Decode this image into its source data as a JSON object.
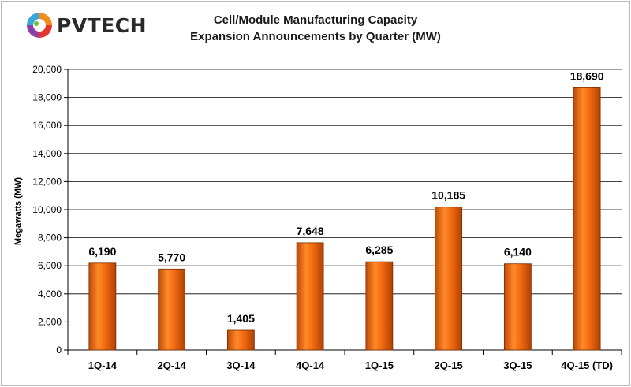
{
  "logo": {
    "text": "PVTECH",
    "icon": "pvtech-logo-icon"
  },
  "chart_data": {
    "type": "bar",
    "title": "Cell/Module Manufacturing Capacity",
    "subtitle": "Expansion Announcements by Quarter (MW)",
    "xlabel": "",
    "ylabel": "Megawatts (MW)",
    "categories": [
      "1Q-14",
      "2Q-14",
      "3Q-14",
      "4Q-14",
      "1Q-15",
      "2Q-15",
      "3Q-15",
      "4Q-15 (TD)"
    ],
    "values": [
      6190,
      5770,
      1405,
      7648,
      6285,
      10185,
      6140,
      18690
    ],
    "data_labels": [
      "6,190",
      "5,770",
      "1,405",
      "7,648",
      "6,285",
      "10,185",
      "6,140",
      "18,690"
    ],
    "ylim": [
      0,
      20000
    ],
    "yticks": [
      0,
      2000,
      4000,
      6000,
      8000,
      10000,
      12000,
      14000,
      16000,
      18000,
      20000
    ],
    "ytick_labels": [
      "0",
      "2,000",
      "4,000",
      "6,000",
      "8,000",
      "10,000",
      "12,000",
      "14,000",
      "16,000",
      "18,000",
      "20,000"
    ],
    "grid": true,
    "legend": "none",
    "bar_color": "#f26a10"
  }
}
